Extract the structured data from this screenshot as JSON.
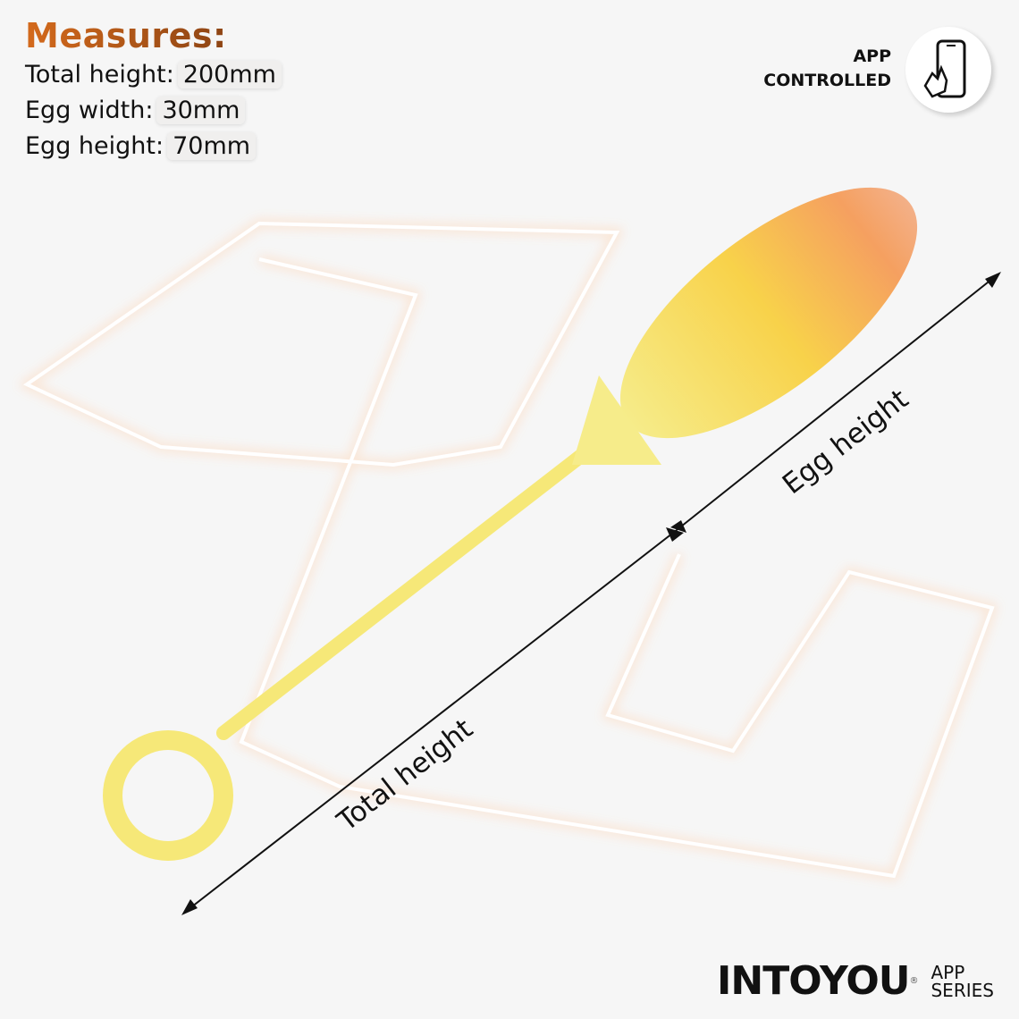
{
  "measures": {
    "title": "Measures:",
    "rows": [
      {
        "label": "Total height:",
        "value": "200mm"
      },
      {
        "label": "Egg width:",
        "value": "30mm"
      },
      {
        "label": "Egg height:",
        "value": "70mm"
      }
    ]
  },
  "badge": {
    "line1": "APP",
    "line2": "CONTROLLED",
    "icon": "phone-touch-icon"
  },
  "dimensions": {
    "total_label": "Total height",
    "egg_label": "Egg height"
  },
  "logo": {
    "word": "INTOYOU",
    "registered": "®",
    "sub1": "APP",
    "sub2": "SERIES"
  },
  "colors": {
    "accent": "#d46a1c",
    "product_yellow": "#f8e67a",
    "product_orange": "#f5a060",
    "background": "#f6f6f6"
  }
}
